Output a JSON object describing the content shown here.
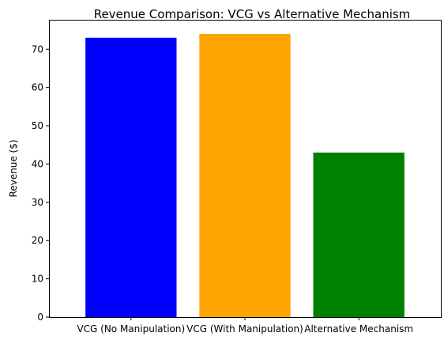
{
  "chart_data": {
    "type": "bar",
    "title": "Revenue Comparison: VCG vs Alternative Mechanism",
    "xlabel": "",
    "ylabel": "Revenue ($)",
    "categories": [
      "VCG (No Manipulation)",
      "VCG (With Manipulation)",
      "Alternative Mechanism"
    ],
    "values": [
      73,
      74,
      43
    ],
    "colors": [
      "#0000ff",
      "#ffa500",
      "#008000"
    ],
    "ylim": [
      0,
      77.7
    ],
    "yticks": [
      0,
      10,
      20,
      30,
      40,
      50,
      60,
      70
    ],
    "grid": false
  }
}
